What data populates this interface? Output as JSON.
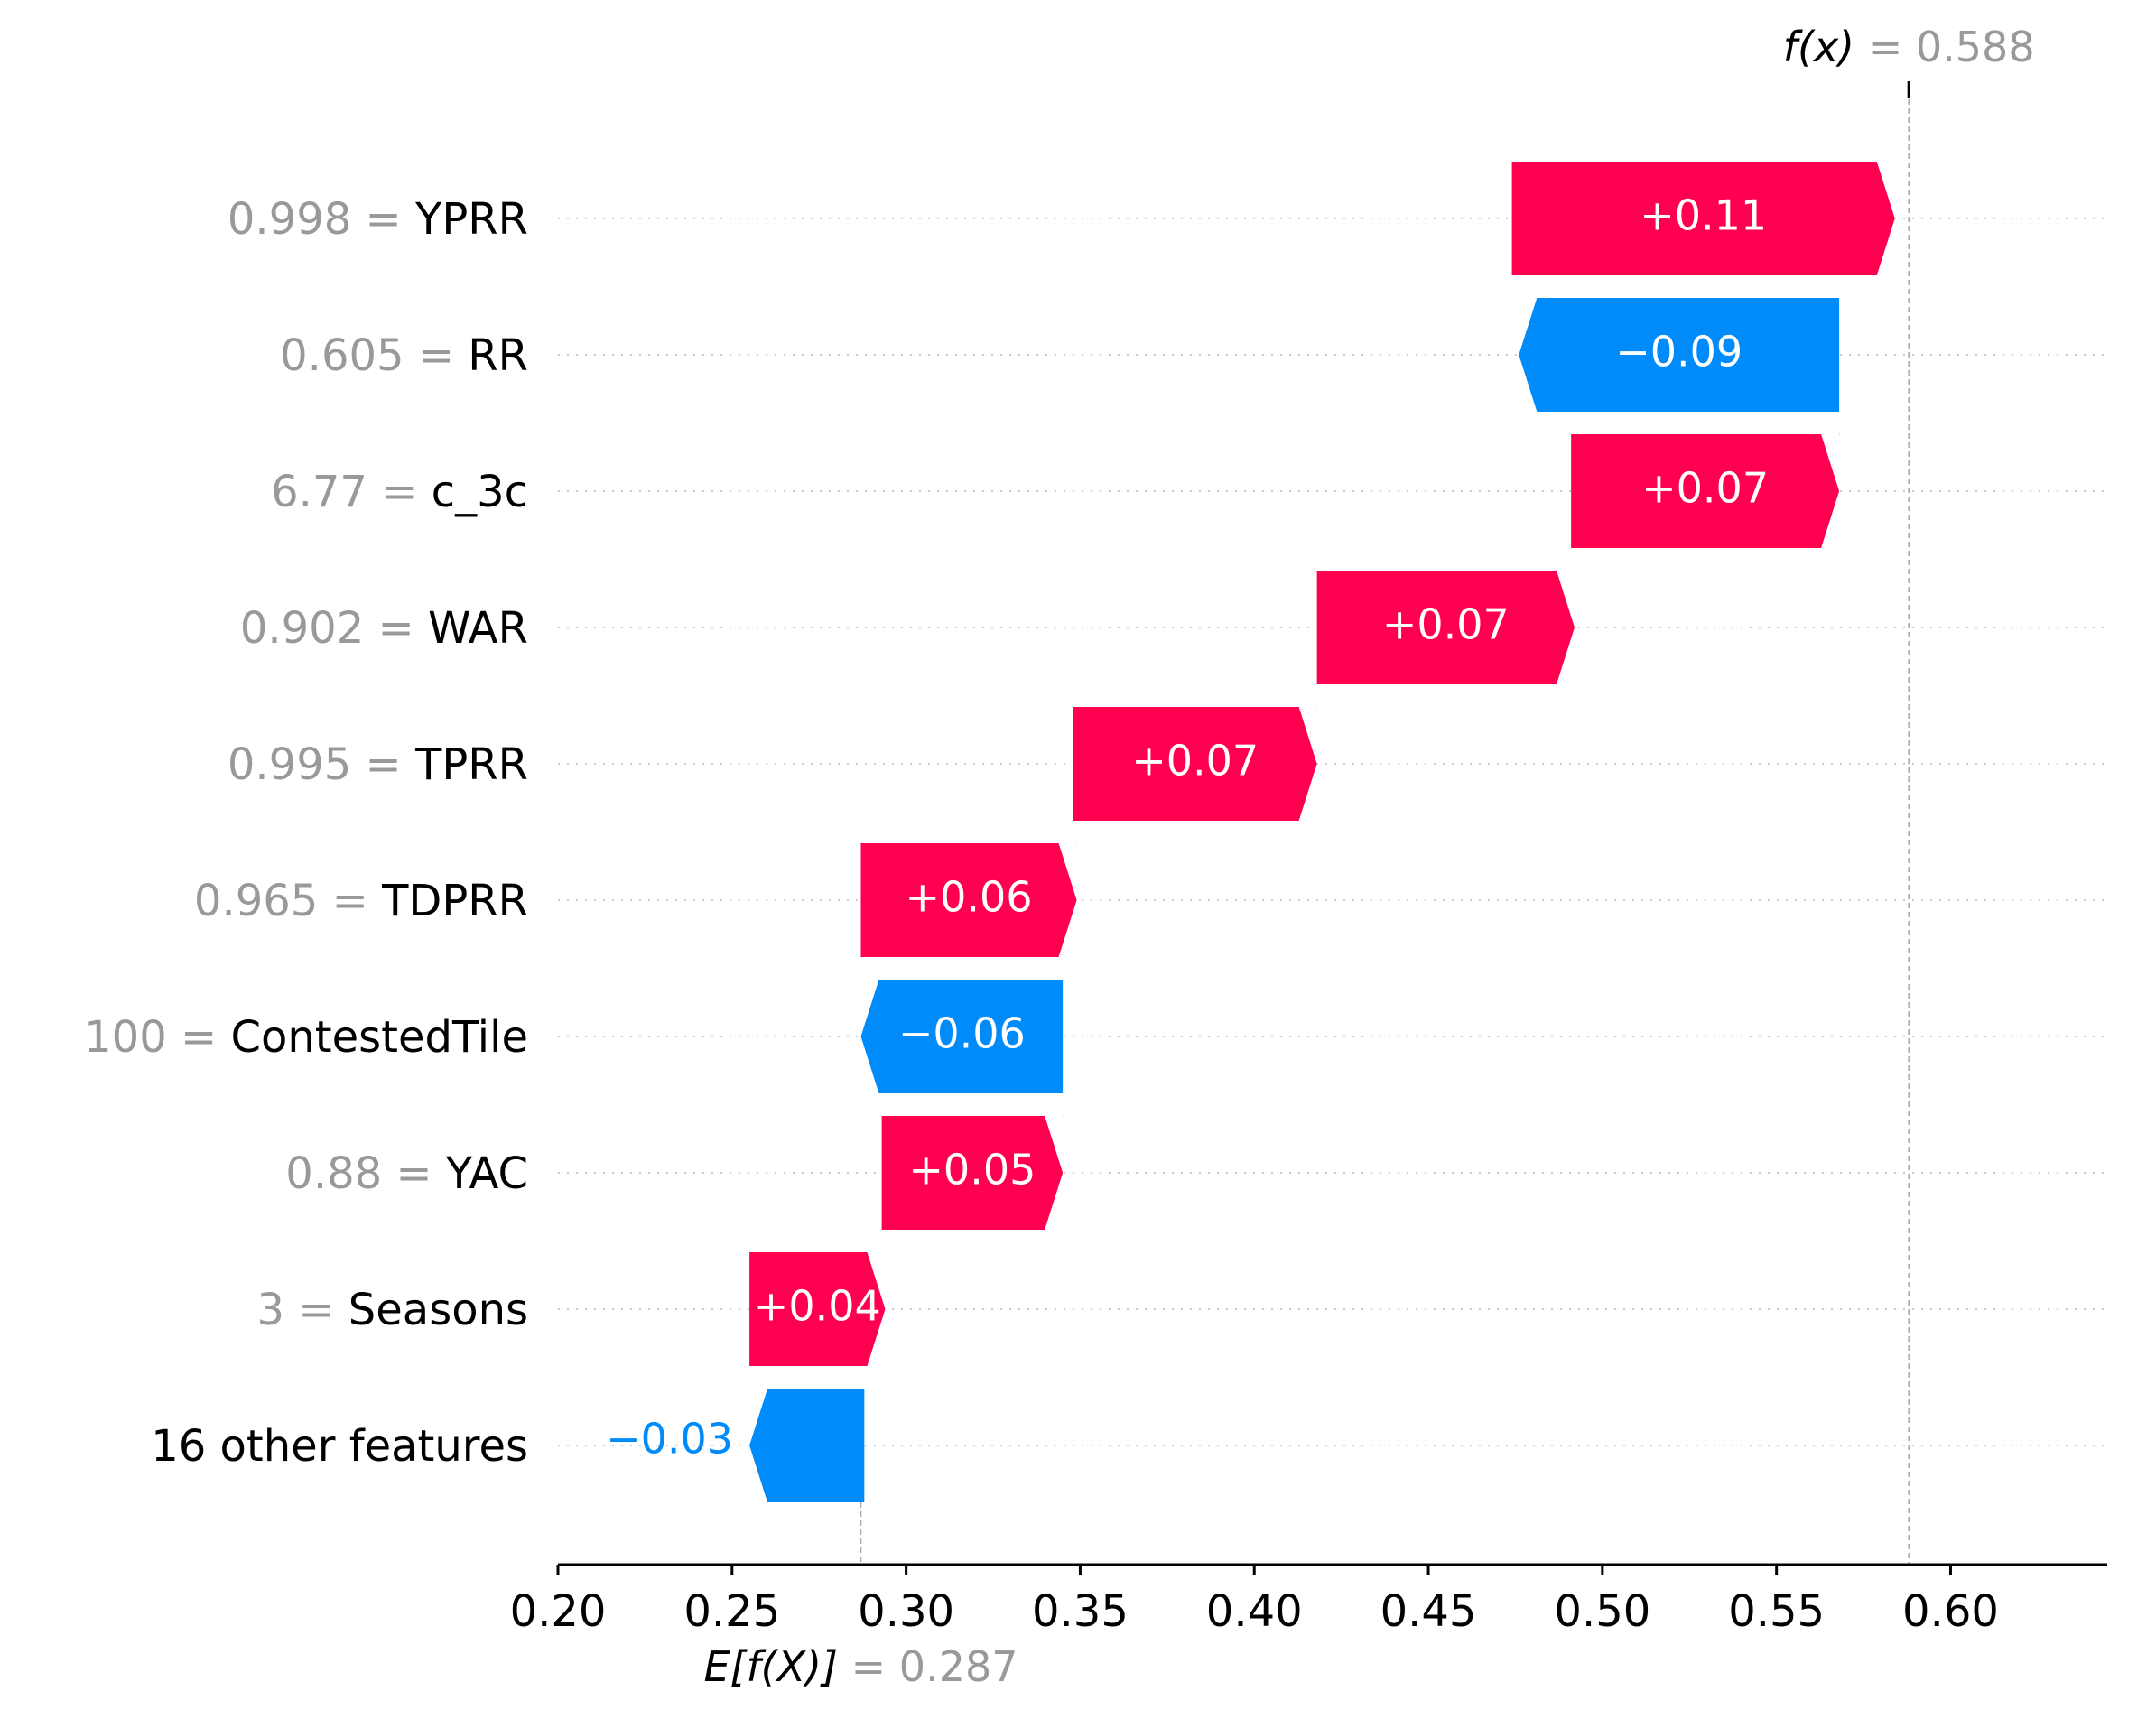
{
  "chart_data": {
    "type": "waterfall",
    "xlim": [
      0.2,
      0.645
    ],
    "ticks": [
      "0.20",
      "0.25",
      "0.30",
      "0.35",
      "0.40",
      "0.45",
      "0.50",
      "0.55",
      "0.60"
    ],
    "tick_values": [
      0.2,
      0.25,
      0.3,
      0.35,
      0.4,
      0.45,
      0.5,
      0.55,
      0.6
    ],
    "grid": "dotted horizontal row lines",
    "base_value": 0.287,
    "base_label_symbol": "E[f(X)]",
    "base_label_value": "= 0.287",
    "output_value": 0.588,
    "output_label_symbol": "f(x)",
    "output_label_value": "= 0.588",
    "features": [
      {
        "value": "0.998 =",
        "name": "YPRR",
        "start": 0.474,
        "end": 0.584,
        "label": "+0.11"
      },
      {
        "value": "0.605 =",
        "name": "RR",
        "start": 0.568,
        "end": 0.476,
        "label": "−0.09"
      },
      {
        "value": "6.77 =",
        "name": "c_3c",
        "start": 0.491,
        "end": 0.568,
        "label": "+0.07"
      },
      {
        "value": "0.902 =",
        "name": "WAR",
        "start": 0.418,
        "end": 0.492,
        "label": "+0.07"
      },
      {
        "value": "0.995 =",
        "name": "TPRR",
        "start": 0.348,
        "end": 0.418,
        "label": "+0.07"
      },
      {
        "value": "0.965 =",
        "name": "TDPRR",
        "start": 0.287,
        "end": 0.349,
        "label": "+0.06"
      },
      {
        "value": "100 =",
        "name": "ContestedTile",
        "start": 0.345,
        "end": 0.287,
        "label": "−0.06"
      },
      {
        "value": "0.88 =",
        "name": "YAC",
        "start": 0.293,
        "end": 0.345,
        "label": "+0.05"
      },
      {
        "value": "3 =",
        "name": "Seasons",
        "start": 0.255,
        "end": 0.294,
        "label": "+0.04"
      },
      {
        "value": "",
        "name": "16 other features",
        "start": 0.288,
        "end": 0.255,
        "label": "−0.03"
      }
    ],
    "colors": {
      "positive": "#ff0051",
      "negative": "#008bfb",
      "value_text": "#999999",
      "name_text": "#000000",
      "grid": "#cccccc",
      "connector": "#aaaaaa"
    }
  }
}
